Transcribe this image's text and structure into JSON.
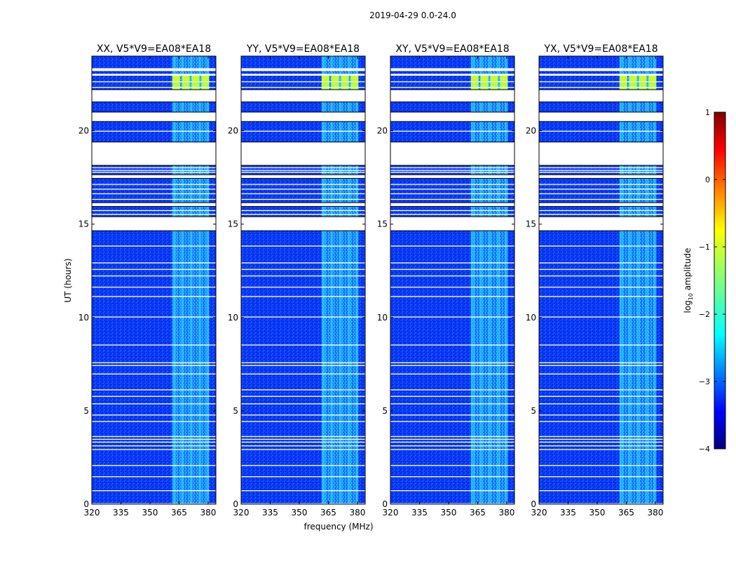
{
  "figure_title": "2019-04-29 0.0-24.0",
  "colors": {
    "background": "#00007f",
    "deep_blue": "#0000ff",
    "medium_blue": "#0a3fff",
    "cyan": "#00ffff",
    "green": "#7fff7f",
    "yellow": "#ffff00",
    "red": "#ff0000",
    "dark_red": "#7f0000",
    "gap": "#ffffff"
  },
  "chart_data": {
    "type": "heatmap",
    "figure_title": "2019-04-29 0.0-24.0",
    "xlabel": "frequency (MHz)",
    "ylabel": "UT (hours)",
    "xlim": [
      320,
      384
    ],
    "ylim": [
      0,
      24
    ],
    "x_ticks": [
      320,
      335,
      350,
      365,
      380
    ],
    "y_ticks": [
      0,
      5,
      10,
      15,
      20
    ],
    "panels": [
      {
        "name": "XX",
        "title": "XX, V5*V9=EA08*EA18",
        "bright_band_start": 361.5,
        "bright_band_end": 380.5
      },
      {
        "name": "YY",
        "title": "YY, V5*V9=EA08*EA18",
        "bright_band_start": 361.5,
        "bright_band_end": 380.5
      },
      {
        "name": "XY",
        "title": "XY, V5*V9=EA08*EA18",
        "bright_band_start": 361.5,
        "bright_band_end": 380.5
      },
      {
        "name": "YX",
        "title": "YX, V5*V9=EA08*EA18",
        "bright_band_start": 361.5,
        "bright_band_end": 380.5
      }
    ],
    "flagged_time_ranges_hours": [
      [
        0.0,
        0.05
      ],
      [
        0.7,
        0.75
      ],
      [
        1.45,
        1.5
      ],
      [
        2.05,
        2.1
      ],
      [
        2.9,
        2.95
      ],
      [
        3.1,
        3.15
      ],
      [
        3.3,
        3.35
      ],
      [
        3.45,
        3.5
      ],
      [
        3.6,
        3.65
      ],
      [
        4.4,
        4.45
      ],
      [
        4.75,
        4.8
      ],
      [
        5.35,
        5.4
      ],
      [
        5.75,
        5.8
      ],
      [
        6.1,
        6.15
      ],
      [
        6.95,
        7.0
      ],
      [
        7.4,
        7.45
      ],
      [
        7.55,
        7.6
      ],
      [
        8.5,
        8.55
      ],
      [
        10.0,
        10.05
      ],
      [
        11.1,
        11.15
      ],
      [
        11.6,
        11.65
      ],
      [
        12.2,
        12.25
      ],
      [
        12.55,
        12.6
      ],
      [
        12.9,
        12.95
      ],
      [
        13.8,
        13.85
      ],
      [
        14.65,
        15.4
      ],
      [
        15.5,
        15.55
      ],
      [
        15.7,
        15.75
      ],
      [
        15.95,
        16.15
      ],
      [
        16.3,
        16.35
      ],
      [
        16.6,
        16.65
      ],
      [
        16.85,
        16.9
      ],
      [
        17.1,
        17.15
      ],
      [
        17.45,
        17.65
      ],
      [
        17.75,
        17.8
      ],
      [
        17.85,
        17.9
      ],
      [
        18.0,
        18.05
      ],
      [
        18.15,
        19.4
      ],
      [
        19.95,
        20.0
      ],
      [
        20.5,
        21.0
      ],
      [
        21.55,
        22.2
      ],
      [
        22.3,
        22.35
      ],
      [
        22.6,
        22.65
      ],
      [
        22.95,
        23.05
      ],
      [
        23.2,
        23.35
      ]
    ],
    "colorbar": {
      "label": "log10 amplitude",
      "label_prefix": "log",
      "label_subscript": "10",
      "label_suffix": " amplitude",
      "min": -4,
      "max": 1,
      "ticks": [
        -4,
        -3,
        -2,
        -1,
        0,
        1
      ],
      "tick_labels": [
        "−4",
        "−3",
        "−2",
        "−1",
        "0",
        "1"
      ],
      "colormap": "jet"
    }
  }
}
